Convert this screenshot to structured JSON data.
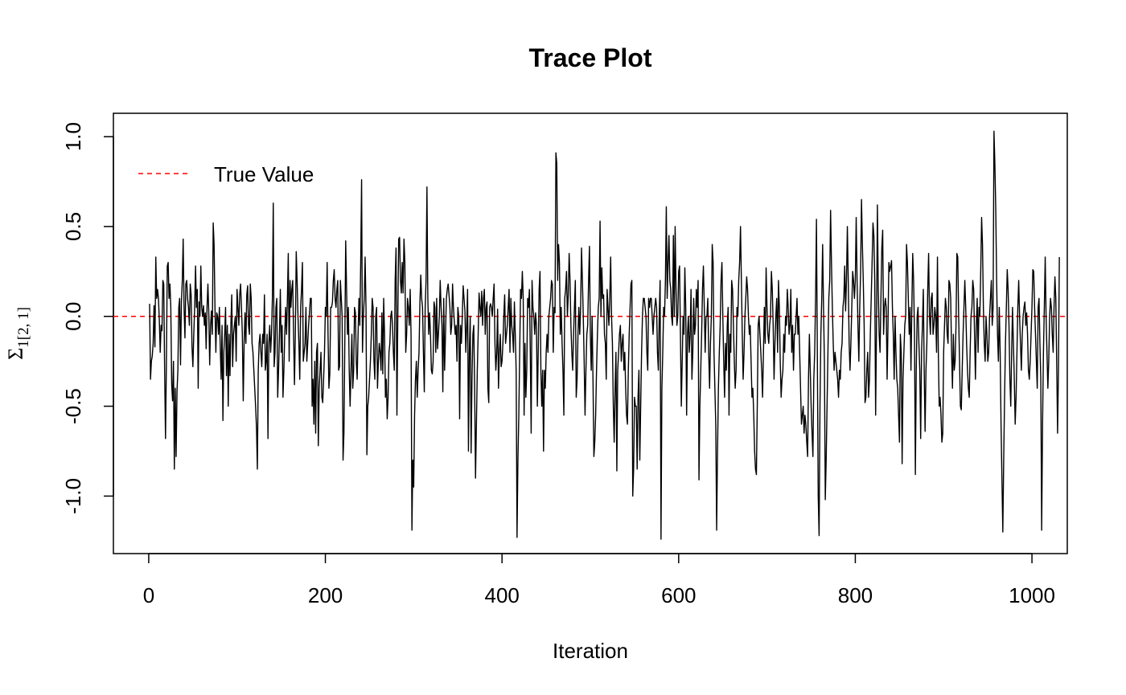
{
  "chart_data": {
    "type": "line",
    "title": "Trace Plot",
    "xlabel": "Iteration",
    "ylabel": {
      "symbol": "Σ",
      "subscript": "1[2, 1]"
    },
    "xlim": [
      -40,
      1040
    ],
    "ylim": [
      -1.32,
      1.13
    ],
    "x_ticks": [
      0,
      200,
      400,
      600,
      800,
      1000
    ],
    "y_ticks": [
      -1.0,
      -0.5,
      0.0,
      0.5,
      1.0
    ],
    "x_tick_labels": [
      "0",
      "200",
      "400",
      "600",
      "800",
      "1000"
    ],
    "y_tick_labels": [
      "-1.0",
      "-0.5",
      "0.0",
      "0.5",
      "1.0"
    ],
    "grid": false,
    "legend": {
      "position": "top-left",
      "entries": [
        {
          "label": "True Value",
          "color": "#ff0000",
          "style": "dashed"
        }
      ]
    },
    "reference_line": {
      "y": 0.0,
      "color": "#ff0000",
      "style": "dashed"
    },
    "series": [
      {
        "color": "#000000",
        "x_start": 1,
        "x_step": 1,
        "values": [
          0.07,
          -0.35,
          -0.25,
          -0.22,
          -0.15,
          0.06,
          -0.17,
          0.33,
          0.1,
          0.15,
          0.1,
          -0.02,
          -0.2,
          -0.05,
          -0.08,
          0.2,
          0.18,
          -0.3,
          -0.68,
          -0.25,
          0.28,
          0.3,
          0.1,
          0.18,
          0.05,
          -0.38,
          -0.47,
          -0.25,
          -0.85,
          -0.4,
          -0.78,
          -0.42,
          -0.3,
          0.05,
          0.1,
          -0.27,
          0.08,
          0.2,
          0.43,
          0.05,
          -0.12,
          0.18,
          0.2,
          0.1,
          0.05,
          -0.05,
          0.18,
          0.12,
          -0.17,
          -0.28,
          -0.1,
          0.05,
          0.28,
          0.05,
          0.15,
          -0.4,
          0.08,
          0.0,
          0.28,
          0.05,
          0.0,
          0.06,
          -0.05,
          0.02,
          -0.18,
          0.05,
          0.18,
          0.02,
          -0.27,
          -0.05,
          0.03,
          -0.1,
          0.52,
          0.4,
          0.05,
          -0.2,
          0.02,
          0.0,
          -0.1,
          0.05,
          -0.18,
          -0.35,
          -0.05,
          -0.58,
          -0.2,
          -0.1,
          0.05,
          -0.33,
          -0.05,
          -0.5,
          -0.1,
          -0.33,
          -0.05,
          0.12,
          -0.28,
          -0.1,
          -0.05,
          0.0,
          -0.25,
          0.15,
          0.05,
          -0.05,
          0.12,
          0.18,
          0.05,
          -0.1,
          -0.47,
          -0.15,
          0.02,
          -0.15,
          0.12,
          0.17,
          -0.05,
          -0.1,
          0.18,
          0.1,
          -0.15,
          -0.2,
          -0.3,
          -0.4,
          -0.5,
          -0.62,
          -0.85,
          -0.3,
          -0.15,
          -0.1,
          -0.2,
          -0.28,
          -0.1,
          -0.15,
          0.12,
          -0.3,
          -0.25,
          -0.1,
          -0.68,
          -0.15,
          -0.05,
          -0.2,
          -0.1,
          0.1,
          0.63,
          -0.28,
          -0.2,
          0.05,
          0.1,
          -0.45,
          -0.3,
          -0.1,
          0.15,
          -0.2,
          -0.05,
          -0.45,
          -0.3,
          -0.1,
          0.05,
          -0.1,
          0.1,
          0.35,
          -0.25,
          0.2,
          0.05,
          0.15,
          0.2,
          -0.1,
          -0.38,
          -0.1,
          0.36,
          0.2,
          0.0,
          -0.15,
          -0.35,
          0.05,
          0.15,
          0.3,
          -0.25,
          -0.2,
          -0.15,
          0.05,
          -0.25,
          -0.15,
          -0.05,
          0.02,
          0.1,
          0.1,
          -0.5,
          -0.35,
          -0.6,
          -0.25,
          -0.65,
          -0.2,
          -0.15,
          -0.72,
          -0.4,
          -0.3,
          -0.2,
          -0.45,
          -0.48,
          -0.35,
          -0.2,
          0.05,
          0.0,
          0.3,
          -0.1,
          -0.4,
          -0.32,
          0.05,
          0.05,
          0.08,
          0.2,
          0.26,
          0.1,
          0.05,
          0.15,
          0.2,
          -0.3,
          -0.28,
          0.2,
          0.1,
          0.0,
          -0.8,
          -0.65,
          -0.15,
          0.42,
          0.15,
          -0.1,
          0.05,
          -0.3,
          -0.5,
          -0.3,
          -0.1,
          -0.4,
          -0.3,
          0.05,
          0.02,
          -0.25,
          -0.35,
          -0.1,
          0.1,
          -0.05,
          0.3,
          0.76,
          -0.2,
          0.0,
          0.1,
          0.33,
          0.05,
          -0.77,
          -0.5,
          -0.45,
          -0.35,
          -0.25,
          -0.1,
          0.1,
          0.05,
          -0.25,
          -0.35,
          0.0,
          0.05,
          -0.4,
          -0.25,
          -0.15,
          -0.2,
          -0.3,
          0.02,
          -0.32,
          0.1,
          -0.1,
          -0.45,
          -0.35,
          -0.57,
          -0.45,
          -0.2,
          -0.15,
          0.0,
          0.03,
          -0.05,
          -0.2,
          -0.3,
          0.2,
          0.38,
          -0.55,
          0.0,
          0.43,
          0.44,
          0.2,
          0.13,
          0.3,
          0.13,
          0.43,
          0.3,
          -0.2,
          -0.1,
          0.1,
          0.05,
          -0.05,
          0.15,
          -0.1,
          -1.19,
          -0.8,
          -0.95,
          -0.55,
          -0.35,
          -0.25,
          -0.45,
          -0.3,
          -0.2,
          0.07,
          0.23,
          0.1,
          0.05,
          -0.2,
          -0.42,
          0.05,
          0.2,
          0.72,
          0.1,
          -0.1,
          0.02,
          -0.1,
          -0.3,
          -0.32,
          -0.25,
          0.08,
          0.05,
          -0.2,
          0.1,
          -0.18,
          -0.1,
          0.0,
          0.2,
          0.05,
          -0.05,
          -0.42,
          0.1,
          -0.3,
          -0.1,
          0.1,
          0.15,
          0.18,
          0.12,
          0.05,
          -0.1,
          -0.05,
          0.18,
          0.05,
          -0.03,
          -0.1,
          -0.05,
          -0.25,
          0.05,
          0.0,
          -0.57,
          -0.05,
          -0.15,
          0.0,
          0.17,
          0.1,
          0.03,
          -0.2,
          -0.05,
          0.15,
          -0.75,
          -0.2,
          0.0,
          -0.76,
          -0.35,
          -0.1,
          -0.05,
          -0.4,
          -0.9,
          -0.6,
          -0.3,
          -0.1,
          0.13,
          0.05,
          0.0,
          0.14,
          -0.05,
          0.1,
          0.15,
          -0.1,
          0.05,
          0.08,
          -0.4,
          -0.48,
          0.05,
          0.07,
          0.05,
          0.0,
          0.1,
          0.18,
          -0.15,
          -0.3,
          -0.2,
          0.04,
          -0.4,
          -0.2,
          -0.1,
          -0.28,
          -0.25,
          -0.15,
          0.0,
          0.12,
          -0.15,
          -0.1,
          -0.05,
          0.05,
          0.15,
          -0.2,
          0.1,
          -0.05,
          -0.1,
          -0.2,
          0.08,
          -0.1,
          -0.3,
          -1.23,
          -0.8,
          -0.55,
          -0.2,
          0.15,
          0.1,
          0.25,
          0.1,
          -0.55,
          -0.15,
          -0.45,
          -0.3,
          0.1,
          0.05,
          0.15,
          -0.2,
          -0.65,
          0.2,
          0.05,
          0.0,
          -0.1,
          0.02,
          -0.05,
          -0.5,
          -0.2,
          0.15,
          0.25,
          -0.3,
          -0.5,
          -0.3,
          -0.75,
          -0.3,
          -0.4,
          -0.2,
          -0.1,
          -0.2,
          0.0,
          0.05,
          0.1,
          0.2,
          0.18,
          -0.2,
          0.05,
          0.02,
          0.91,
          0.85,
          0.2,
          0.4,
          0.3,
          -0.1,
          0.05,
          -0.15,
          -0.3,
          -0.55,
          0.1,
          0.15,
          0.25,
          0.0,
          0.12,
          0.35,
          0.2,
          -0.05,
          -0.2,
          -0.3,
          -0.1,
          0.05,
          0.2,
          -0.45,
          -0.35,
          -0.1,
          0.05,
          -0.1,
          0.05,
          0.38,
          0.2,
          0.0,
          -0.25,
          -0.55,
          -0.3,
          -0.1,
          -0.05,
          0.2,
          0.39,
          -0.1,
          -0.3,
          0.0,
          -0.35,
          -0.78,
          -0.7,
          -0.55,
          -0.3,
          -0.1,
          0.05,
          0.1,
          0.53,
          0.0,
          0.27,
          0.1,
          0.12,
          -0.1,
          -0.15,
          -0.35,
          0.15,
          0.05,
          -0.05,
          0.1,
          0.33,
          0.0,
          -0.15,
          -0.5,
          -0.7,
          -0.4,
          -0.2,
          -0.86,
          -0.3,
          -0.2,
          -0.1,
          -0.05,
          -0.25,
          -0.15,
          -0.1,
          -0.3,
          -0.2,
          -0.4,
          -0.55,
          -0.6,
          -0.3,
          -0.1,
          0.05,
          0.18,
          0.2,
          -1.0,
          -0.85,
          -0.45,
          -0.5,
          -0.5,
          -0.85,
          -0.45,
          -0.3,
          -0.8,
          -0.5,
          -0.2,
          0.0,
          0.1,
          0.1,
          0.05,
          0.0,
          -0.2,
          -0.3,
          0.1,
          0.05,
          0.1,
          0.1,
          0.0,
          -0.1,
          0.0,
          0.05,
          0.1,
          0.05,
          -0.2,
          -0.3,
          0.0,
          0.2,
          -1.24,
          -0.4,
          -0.2,
          0.05,
          0.0,
          0.2,
          0.61,
          0.1,
          0.3,
          0.45,
          0.2,
          0.15,
          0.0,
          -0.05,
          0.45,
          0.0,
          0.5,
          0.15,
          -0.05,
          0.0,
          0.25,
          0.28,
          -0.1,
          -0.5,
          -0.25,
          0.0,
          -0.1,
          0.27,
          0.05,
          -0.55,
          -0.1,
          0.0,
          -0.2,
          -0.1,
          0.15,
          -0.35,
          -0.2,
          0.1,
          -0.1,
          -0.05,
          0.15,
          0.05,
          0.2,
          -0.91,
          -0.5,
          -0.3,
          -0.1,
          0.15,
          0.28,
          0.05,
          -0.2,
          0.0,
          0.0,
          0.1,
          -0.2,
          -0.4,
          -0.15,
          0.0,
          0.4,
          0.3,
          -0.2,
          -0.4,
          -0.6,
          -1.19,
          -0.75,
          -0.4,
          -0.2,
          -0.05,
          0.2,
          0.3,
          0.0,
          -0.25,
          -0.45,
          -0.15,
          -0.3,
          -0.05,
          0.05,
          -0.55,
          -0.1,
          -0.2,
          0.2,
          0.15,
          -0.05,
          -0.25,
          -0.4,
          -0.3,
          0.05,
          0.0,
          0.2,
          0.3,
          0.5,
          0.2,
          -0.1,
          -0.35,
          -0.2,
          0.0,
          0.1,
          0.22,
          0.15,
          0.0,
          -0.1,
          -0.05,
          -0.25,
          -0.45,
          -0.4,
          -0.55,
          -0.75,
          -0.85,
          -0.88,
          -0.5,
          -0.05,
          0.0,
          -0.1,
          -0.2,
          -0.3,
          -0.45,
          -0.2,
          0.05,
          -0.15,
          0.27,
          0.05,
          -0.1,
          -0.15,
          -0.05,
          0.0,
          0.25,
          0.15,
          -0.05,
          -0.35,
          -0.15,
          0.0,
          0.1,
          -0.2,
          0.2,
          0.05,
          -0.25,
          -0.45,
          -0.35,
          -0.3,
          -0.1,
          -0.2,
          0.0,
          -0.05,
          0.15,
          0.05,
          -0.1,
          -0.05,
          0.15,
          -0.2,
          -0.05,
          -0.3,
          -0.1,
          -0.1,
          0.0,
          0.1,
          -0.1,
          0.0,
          -0.2,
          -0.4,
          -0.6,
          -0.55,
          -0.5,
          -0.65,
          -0.55,
          -0.6,
          -0.7,
          -0.78,
          -0.35,
          -0.1,
          -0.3,
          -0.5,
          -0.65,
          -0.78,
          -0.35,
          -0.2,
          0.1,
          0.54,
          -0.2,
          -1.0,
          -1.22,
          -0.5,
          -0.1,
          0.1,
          0.4,
          0.05,
          -0.25,
          -1.02,
          -0.8,
          -0.5,
          -0.2,
          0.1,
          0.2,
          0.59,
          0.3,
          0.05,
          -0.15,
          -0.3,
          -0.2,
          -0.25,
          -0.3,
          -0.35,
          -0.45,
          -0.3,
          -0.35,
          -0.2,
          -0.15,
          0.05,
          0.1,
          0.28,
          0.03,
          0.2,
          0.5,
          0.2,
          -0.15,
          -0.3,
          -0.15,
          0.05,
          0.25,
          0.2,
          0.1,
          0.2,
          0.55,
          0.2,
          -0.05,
          -0.25,
          0.05,
          0.25,
          0.65,
          0.4,
          0.2,
          -0.05,
          -0.48,
          -0.45,
          -0.3,
          -0.2,
          -0.45,
          -0.35,
          -0.1,
          0.1,
          0.3,
          0.52,
          0.45,
          0.2,
          -0.55,
          -0.05,
          0.62,
          0.15,
          -0.1,
          -0.2,
          0.1,
          0.38,
          0.48,
          -0.1,
          0.05,
          0.1,
          0.05,
          -0.35,
          -0.05,
          0.3,
          0.25,
          0.28,
          0.31,
          0.05,
          -0.1,
          -0.35,
          0.0,
          -0.2,
          -0.35,
          -0.4,
          -0.55,
          -0.7,
          -0.1,
          -0.2,
          -0.82,
          -0.35,
          -0.2,
          -0.05,
          0.0,
          0.4,
          0.3,
          0.1,
          -0.1,
          0.05,
          -0.3,
          0.05,
          0.35,
          0.2,
          -0.1,
          -0.88,
          -0.3,
          0.0,
          0.05,
          -0.15,
          -0.3,
          -0.68,
          -0.2,
          -0.05,
          0.15,
          -0.3,
          -0.64,
          -0.3,
          -0.15,
          0.15,
          0.35,
          0.0,
          -0.1,
          0.1,
          0.13,
          -0.1,
          -0.05,
          0.05,
          0.0,
          -0.2,
          0.33,
          -0.2,
          -0.5,
          -0.45,
          -0.55,
          -0.7,
          -0.65,
          -0.2,
          -0.05,
          0.1,
          0.05,
          -0.1,
          -0.15,
          0.2,
          0.18,
          0.1,
          -0.2,
          -0.4,
          -0.1,
          -0.3,
          -0.25,
          -0.05,
          0.35,
          0.33,
          0.0,
          -0.25,
          -0.5,
          -0.52,
          -0.3,
          -0.1,
          0.05,
          0.2,
          0.05,
          -0.15,
          -0.3,
          -0.4,
          -0.45,
          -0.2,
          0.0,
          0.05,
          0.2,
          0.15,
          -0.1,
          -0.35,
          -0.05,
          0.1,
          -0.2,
          0.05,
          0.0,
          0.25,
          0.55,
          0.4,
          0.05,
          -0.15,
          -0.25,
          0.0,
          -0.1,
          -0.25,
          -0.2,
          0.0,
          0.1,
          0.2,
          -0.05,
          0.05,
          1.03,
          0.85,
          0.6,
          0.2,
          -0.1,
          -0.25,
          0.05,
          -0.2,
          -0.6,
          -0.9,
          -1.2,
          -0.8,
          -0.45,
          -0.15,
          0.05,
          0.26,
          0.15,
          -0.05,
          -0.35,
          -0.5,
          -0.2,
          0.05,
          -0.15,
          -0.35,
          -0.6,
          -0.45,
          -0.2,
          0.05,
          0.2,
          0.0,
          -0.15,
          -0.3,
          -0.1,
          0.0,
          0.05,
          0.08,
          -0.05,
          0.02,
          -0.1,
          -0.3,
          -0.35,
          -0.25,
          -0.1,
          0.05,
          0.26,
          0.25,
          0.05,
          -0.1,
          -0.25,
          -0.4,
          0.05,
          0.1,
          -0.15,
          -0.35,
          -1.19,
          -0.6,
          -0.2,
          0.05,
          0.33,
          0.0,
          -0.2,
          -0.4,
          -0.25,
          0.0,
          0.1,
          0.05,
          -0.1,
          -0.2,
          0.05,
          0.22,
          0.1,
          -0.25,
          -0.65,
          -0.3,
          0.33
        ]
      }
    ]
  }
}
